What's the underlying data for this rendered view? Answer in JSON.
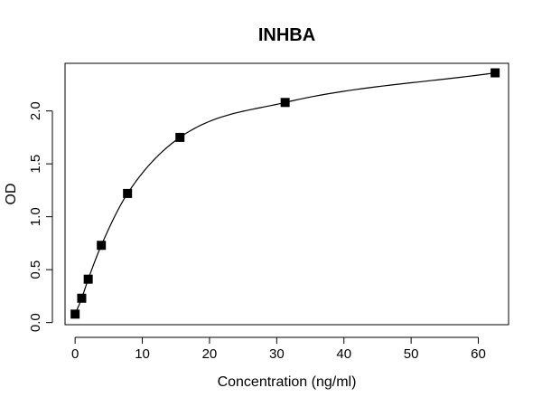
{
  "chart_data": {
    "type": "scatter",
    "title": "INHBA",
    "xlabel": "Concentration (ng/ml)",
    "ylabel": "OD",
    "xlim": [
      -1.5,
      64.5
    ],
    "ylim": [
      -0.02,
      2.45
    ],
    "x_ticks": [
      0,
      10,
      20,
      30,
      40,
      50,
      60
    ],
    "y_ticks": [
      0.0,
      0.5,
      1.0,
      1.5,
      2.0
    ],
    "y_tick_labels": [
      "0.0",
      "0.5",
      "1.0",
      "1.5",
      "2.0"
    ],
    "grid": false,
    "series": [
      {
        "x": [
          0,
          0.98,
          1.95,
          3.9,
          7.8,
          15.6,
          31.25,
          62.5
        ],
        "y": [
          0.08,
          0.23,
          0.41,
          0.73,
          1.22,
          1.75,
          2.08,
          2.36
        ],
        "marker": "square",
        "color": "#000000"
      }
    ],
    "fit_curve": true
  }
}
